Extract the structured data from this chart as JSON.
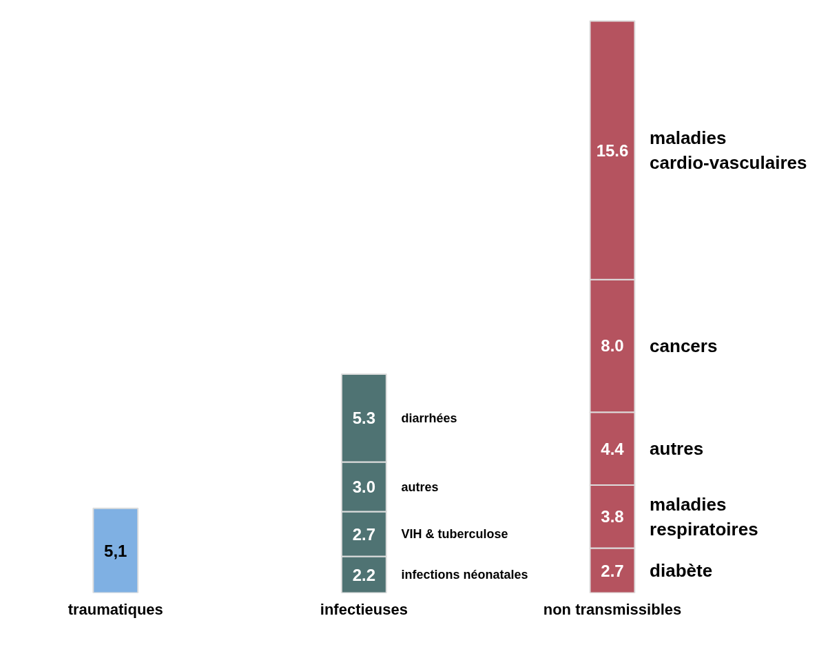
{
  "chart_data": {
    "type": "bar",
    "stacked": true,
    "categories": [
      "traumatiques",
      "infectieuses",
      "non transmissibles"
    ],
    "grid": false,
    "series": [
      {
        "color": "#7fb0e3",
        "values": [
          5.1,
          null,
          null
        ],
        "value_labels": [
          "5,1",
          null,
          null
        ]
      },
      {
        "name": "infections néonatales",
        "color": "#4f7373",
        "values": [
          null,
          2.2,
          null
        ],
        "value_labels": [
          null,
          "2.2",
          null
        ]
      },
      {
        "name": "VIH & tuberculose",
        "color": "#4f7373",
        "values": [
          null,
          2.7,
          null
        ],
        "value_labels": [
          null,
          "2.7",
          null
        ]
      },
      {
        "name": "autres",
        "color": "#4f7373",
        "values": [
          null,
          3.0,
          null
        ],
        "value_labels": [
          null,
          "3.0",
          null
        ]
      },
      {
        "name": "diarrhées",
        "color": "#4f7373",
        "values": [
          null,
          5.3,
          null
        ],
        "value_labels": [
          null,
          "5.3",
          null
        ]
      },
      {
        "name": "diabète",
        "color": "#b5535f",
        "values": [
          null,
          null,
          2.7
        ],
        "value_labels": [
          null,
          null,
          "2.7"
        ]
      },
      {
        "name": "maladies respiratoires",
        "color": "#b5535f",
        "values": [
          null,
          null,
          3.8
        ],
        "value_labels": [
          null,
          null,
          "3.8"
        ]
      },
      {
        "name": "autres",
        "color": "#b5535f",
        "values": [
          null,
          null,
          4.4
        ],
        "value_labels": [
          null,
          null,
          "4.4"
        ]
      },
      {
        "name": "cancers",
        "color": "#b5535f",
        "values": [
          null,
          null,
          8.0
        ],
        "value_labels": [
          null,
          null,
          "8.0"
        ]
      },
      {
        "name": "maladies cardio-vasculaires",
        "color": "#b5535f",
        "values": [
          null,
          null,
          15.6
        ],
        "value_labels": [
          null,
          null,
          "15.6"
        ]
      }
    ]
  }
}
